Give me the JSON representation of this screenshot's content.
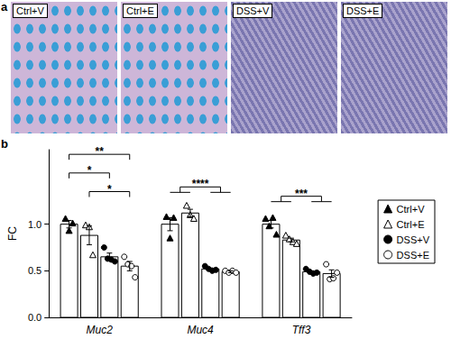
{
  "panel_a": {
    "label": "a",
    "images": [
      "Ctrl+V",
      "Ctrl+E",
      "DSS+V",
      "DSS+E"
    ]
  },
  "panel_b": {
    "label": "b"
  },
  "chart_data": {
    "type": "bar",
    "categories": [
      "Muc2",
      "Muc4",
      "Tff3"
    ],
    "y_label": "FC",
    "ylim": [
      0,
      1.8
    ],
    "yticks": [
      {
        "value": 0,
        "label": "0.0"
      },
      0.5,
      {
        "value": 1,
        "label": "1.0"
      }
    ],
    "series": [
      {
        "name": "Ctrl+V",
        "color": "#000000",
        "marker": "triangle",
        "values": [
          1.0,
          1.0,
          1.0
        ],
        "sem": [
          0.04,
          0.07,
          0.04
        ],
        "points": [
          [
            1.06,
            0.93,
            1.01
          ],
          [
            1.08,
            0.85,
            1.07
          ],
          [
            1.06,
            0.98,
            1.07,
            0.89
          ]
        ]
      },
      {
        "name": "Ctrl+E",
        "color": "#000000",
        "marker": "open-triangle",
        "values": [
          0.88,
          1.12,
          0.83
        ],
        "sem": [
          0.1,
          0.04,
          0.02
        ],
        "points": [
          [
            0.99,
            0.97,
            0.67
          ],
          [
            1.2,
            1.1,
            1.06
          ],
          [
            0.88,
            0.84,
            0.81,
            0.79
          ]
        ]
      },
      {
        "name": "DSS+V",
        "color": "#000000",
        "marker": "circle",
        "values": [
          0.65,
          0.52,
          0.49
        ],
        "sem": [
          0.04,
          0.01,
          0.01
        ],
        "points": [
          [
            0.75,
            0.63,
            0.62,
            0.6
          ],
          [
            0.55,
            0.52,
            0.5,
            0.51
          ],
          [
            0.52,
            0.49,
            0.47,
            0.48
          ]
        ]
      },
      {
        "name": "DSS+E",
        "color": "#000000",
        "marker": "open-circle",
        "values": [
          0.55,
          0.49,
          0.47
        ],
        "sem": [
          0.05,
          0.01,
          0.04
        ],
        "points": [
          [
            0.65,
            0.57,
            0.55,
            0.43
          ],
          [
            0.5,
            0.48,
            0.5,
            0.48
          ],
          [
            0.57,
            0.41,
            0.42,
            0.48
          ]
        ]
      }
    ],
    "annotations": [
      {
        "text": "**",
        "category": "Muc2",
        "left": [
          "Ctrl+V"
        ],
        "right": [
          "DSS+E"
        ],
        "y": 1.75
      },
      {
        "text": "*",
        "category": "Muc2",
        "left": [
          "Ctrl+V"
        ],
        "right": [
          "DSS+V"
        ],
        "y": 1.55
      },
      {
        "text": "*",
        "category": "Muc2",
        "left": [
          "Ctrl+E"
        ],
        "right": [
          "DSS+E"
        ],
        "y": 1.35
      },
      {
        "text": "****",
        "category": "Muc4",
        "left": [
          "Ctrl+V",
          "Ctrl+E"
        ],
        "right": [
          "DSS+V",
          "DSS+E"
        ],
        "y": 1.4
      },
      {
        "text": "***",
        "category": "Tff3",
        "left": [
          "Ctrl+V",
          "Ctrl+E"
        ],
        "right": [
          "DSS+V",
          "DSS+E"
        ],
        "y": 1.3
      }
    ],
    "legend": "right"
  }
}
